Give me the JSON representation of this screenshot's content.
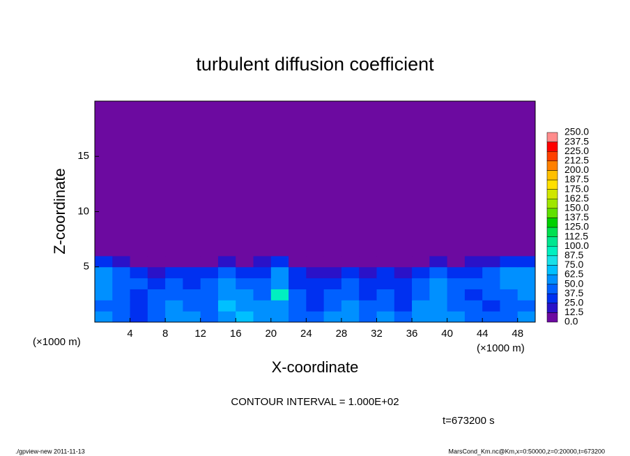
{
  "chart_data": {
    "type": "heatmap",
    "title": "turbulent diffusion coefficient",
    "x_label": "X-coordinate",
    "y_label": "Z-coordinate",
    "unit_left": "(×1000 m)",
    "unit_right": "(×1000 m)",
    "contour_note": "CONTOUR INTERVAL = 1.000E+02",
    "time_note": "t=673200 s",
    "footer_left": "./gpview-new   2011-11-13",
    "footer_right": "MarsCond_Km.nc@Km,x=0:50000,z=0:20000,t=673200",
    "xlim": [
      0,
      50
    ],
    "ylim": [
      0,
      20
    ],
    "xticks": [
      4,
      8,
      12,
      16,
      20,
      24,
      28,
      32,
      36,
      40,
      44,
      48
    ],
    "yticks": [
      5,
      10,
      15
    ],
    "x_edges": [
      0,
      2,
      4,
      6,
      8,
      10,
      12,
      14,
      16,
      18,
      20,
      22,
      24,
      26,
      28,
      30,
      32,
      34,
      36,
      38,
      40,
      42,
      44,
      46,
      48,
      50
    ],
    "y_edges": [
      0,
      1,
      2,
      3,
      4,
      5,
      6,
      20
    ],
    "z": [
      [
        50,
        40,
        35,
        45,
        55,
        50,
        45,
        60,
        70,
        55,
        50,
        45,
        40,
        50,
        55,
        45,
        50,
        40,
        55,
        60,
        50,
        45,
        40,
        45,
        50
      ],
      [
        45,
        40,
        30,
        40,
        50,
        45,
        40,
        65,
        60,
        50,
        55,
        40,
        35,
        45,
        50,
        40,
        45,
        35,
        50,
        55,
        45,
        40,
        35,
        40,
        45
      ],
      [
        50,
        45,
        35,
        40,
        45,
        40,
        45,
        60,
        55,
        45,
        95,
        40,
        30,
        40,
        45,
        35,
        40,
        30,
        45,
        60,
        40,
        35,
        40,
        45,
        50
      ],
      [
        55,
        45,
        40,
        35,
        40,
        35,
        40,
        55,
        45,
        40,
        60,
        35,
        25,
        35,
        40,
        30,
        35,
        25,
        40,
        50,
        45,
        40,
        45,
        50,
        55
      ],
      [
        60,
        40,
        25,
        20,
        25,
        30,
        35,
        45,
        30,
        35,
        50,
        25,
        15,
        20,
        25,
        20,
        25,
        20,
        25,
        40,
        30,
        35,
        45,
        55,
        50
      ],
      [
        30,
        20,
        10,
        5,
        10,
        5,
        10,
        20,
        10,
        15,
        25,
        5,
        5,
        5,
        10,
        5,
        10,
        10,
        10,
        15,
        10,
        15,
        20,
        35,
        30
      ],
      [
        10,
        5,
        0,
        0,
        0,
        0,
        5,
        5,
        5,
        10,
        5,
        0,
        0,
        0,
        0,
        5,
        0,
        0,
        5,
        5,
        0,
        0,
        5,
        10,
        10
      ]
    ],
    "levels": [
      {
        "value": 0,
        "label": "0.0"
      },
      {
        "value": 12.5,
        "label": "12.5"
      },
      {
        "value": 25,
        "label": "25.0"
      },
      {
        "value": 37.5,
        "label": "37.5"
      },
      {
        "value": 50,
        "label": "50.0"
      },
      {
        "value": 62.5,
        "label": "62.5"
      },
      {
        "value": 75,
        "label": "75.0"
      },
      {
        "value": 87.5,
        "label": "87.5"
      },
      {
        "value": 100,
        "label": "100.0"
      },
      {
        "value": 112.5,
        "label": "112.5"
      },
      {
        "value": 125,
        "label": "125.0"
      },
      {
        "value": 137.5,
        "label": "137.5"
      },
      {
        "value": 150,
        "label": "150.0"
      },
      {
        "value": 162.5,
        "label": "162.5"
      },
      {
        "value": 175,
        "label": "175.0"
      },
      {
        "value": 187.5,
        "label": "187.5"
      },
      {
        "value": 200,
        "label": "200.0"
      },
      {
        "value": 212.5,
        "label": "212.5"
      },
      {
        "value": 225,
        "label": "225.0"
      },
      {
        "value": 237.5,
        "label": "237.5"
      },
      {
        "value": 250,
        "label": "250.0"
      }
    ],
    "colors": [
      "#6c0aa0",
      "#2a12c8",
      "#0030f0",
      "#0060ff",
      "#0090ff",
      "#00c0ff",
      "#18e0e8",
      "#00f0c0",
      "#00e690",
      "#00e050",
      "#00d000",
      "#60e000",
      "#a0e600",
      "#d0e600",
      "#ffe000",
      "#ffc000",
      "#ff8000",
      "#ff4000",
      "#ff0000",
      "#ff8c8c"
    ]
  }
}
